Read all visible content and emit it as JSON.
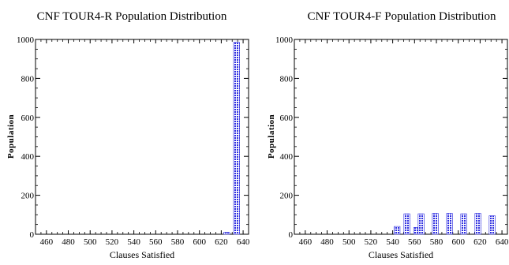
{
  "chart_data": [
    {
      "type": "bar",
      "title": "CNF TOUR4-R Population Distribution",
      "xlabel": "Clauses Satisfied",
      "ylabel": "Population",
      "xlim": [
        450,
        645
      ],
      "ylim": [
        0,
        1000
      ],
      "xticks": [
        460,
        480,
        500,
        520,
        540,
        560,
        580,
        600,
        620,
        640
      ],
      "yticks": [
        0,
        200,
        400,
        600,
        800,
        1000
      ],
      "bar_color": "#3030e0",
      "bars": [
        {
          "x": 625,
          "y": 10
        },
        {
          "x": 634,
          "y": 985
        }
      ]
    },
    {
      "type": "bar",
      "title": "CNF TOUR4-F Population Distribution",
      "xlabel": "Clauses Satisfied",
      "ylabel": "Population",
      "xlim": [
        450,
        645
      ],
      "ylim": [
        0,
        1000
      ],
      "xticks": [
        460,
        480,
        500,
        520,
        540,
        560,
        580,
        600,
        620,
        640
      ],
      "yticks": [
        0,
        200,
        400,
        600,
        800,
        1000
      ],
      "bar_color": "#3030e0",
      "bars": [
        {
          "x": 544,
          "y": 40
        },
        {
          "x": 553,
          "y": 105
        },
        {
          "x": 562,
          "y": 35
        },
        {
          "x": 566,
          "y": 105
        },
        {
          "x": 579,
          "y": 107
        },
        {
          "x": 592,
          "y": 107
        },
        {
          "x": 605,
          "y": 105
        },
        {
          "x": 618,
          "y": 107
        },
        {
          "x": 631,
          "y": 95
        }
      ]
    }
  ]
}
